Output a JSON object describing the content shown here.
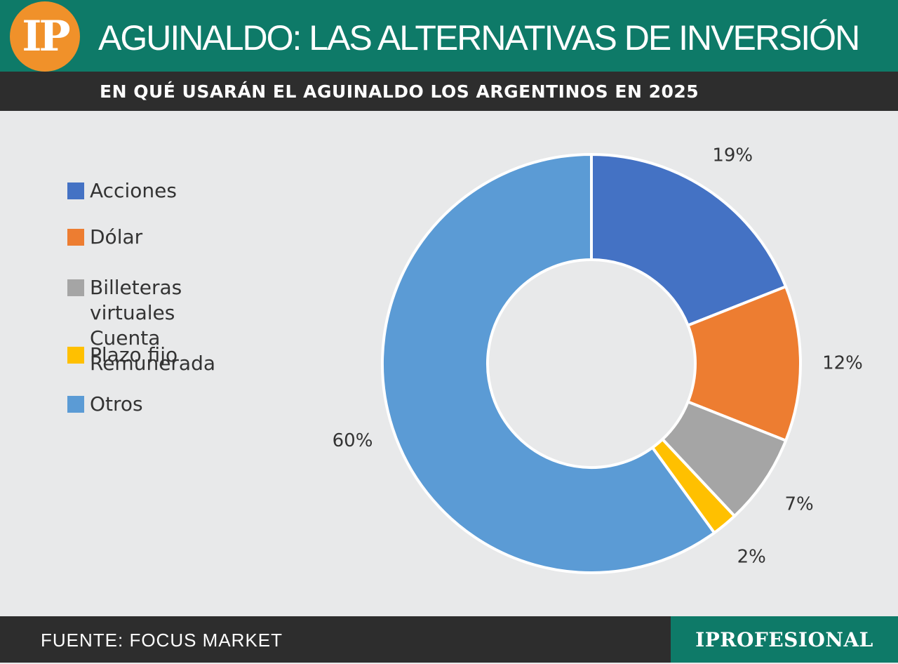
{
  "header": {
    "logo_text": "IP",
    "title": "AGUINALDO: LAS ALTERNATIVAS DE INVERSIÓN",
    "subtitle": "EN QUÉ USARÁN EL AGUINALDO LOS ARGENTINOS EN 2025"
  },
  "footer": {
    "source": "FUENTE: FOCUS MARKET",
    "brand": "IPROFESIONAL"
  },
  "colors": {
    "header_bg": "#0e7a68",
    "bar_bg": "#2d2d2d",
    "logo_bg": "#f0912a",
    "background": "#e8e9ea"
  },
  "chart_data": {
    "type": "pie",
    "style": "donut",
    "legend_position": "left",
    "categories": [
      "Acciones",
      "Dólar",
      "Billeteras virtuales\nCuenta Remunerada",
      "Plazo fijo",
      "Otros"
    ],
    "values": [
      19,
      12,
      7,
      2,
      60
    ],
    "labels": [
      "19%",
      "12%",
      "7%",
      "2%",
      "60%"
    ],
    "colors": [
      "#4472c4",
      "#ed7d31",
      "#a5a5a5",
      "#ffc000",
      "#5b9bd5"
    ]
  }
}
